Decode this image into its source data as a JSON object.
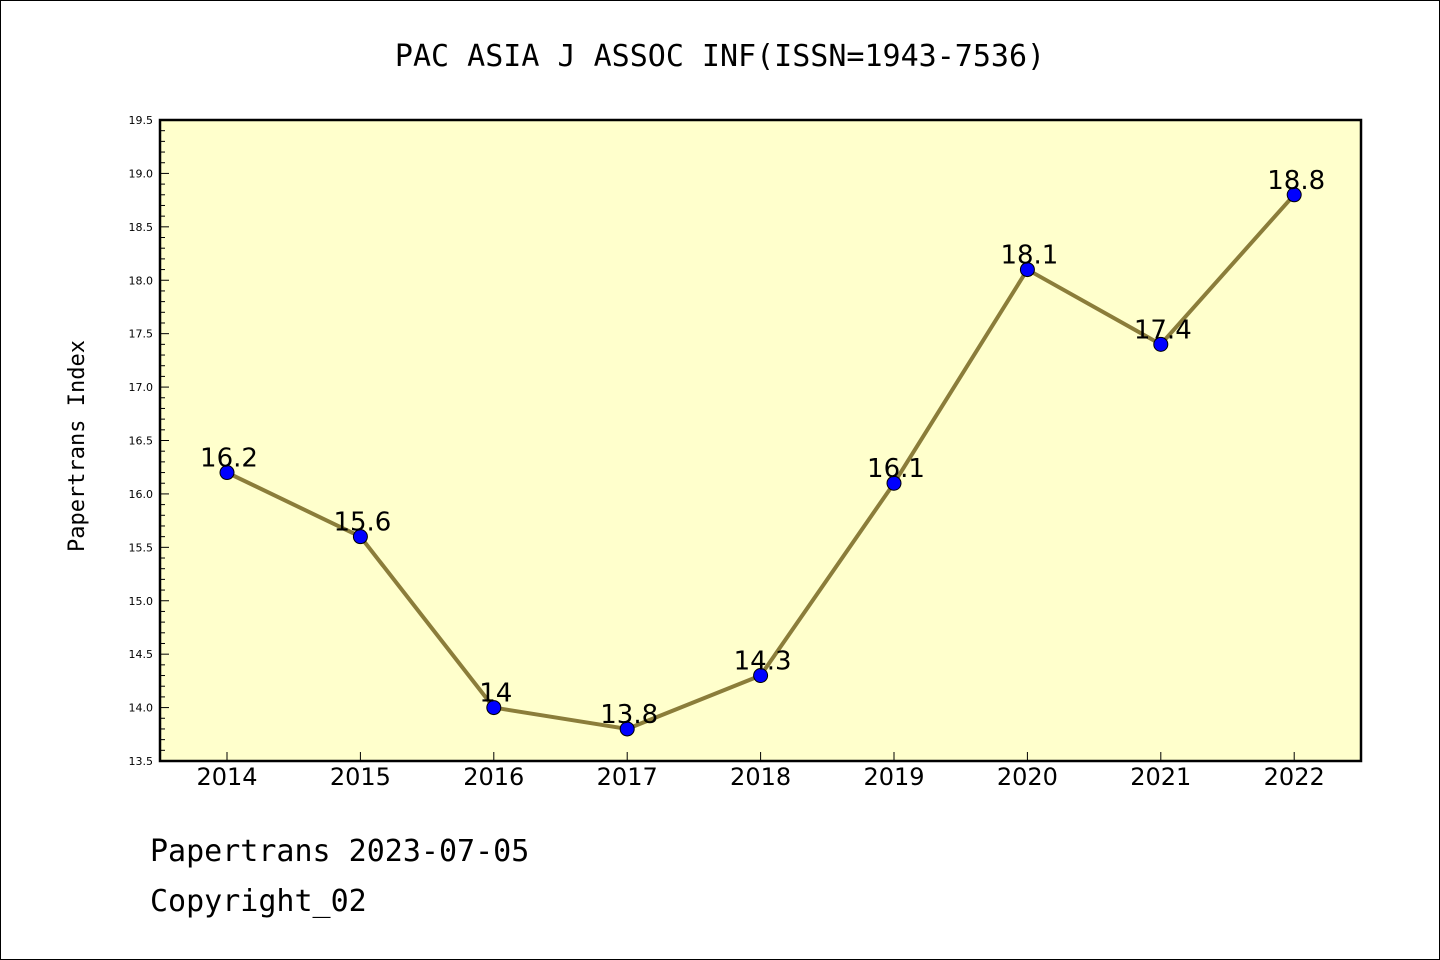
{
  "chart_data": {
    "type": "line",
    "title": "PAC ASIA J ASSOC INF(ISSN=1943-7536)",
    "ylabel": "Papertrans Index",
    "xlabel": "",
    "categories": [
      "2014",
      "2015",
      "2016",
      "2017",
      "2018",
      "2019",
      "2020",
      "2021",
      "2022"
    ],
    "values": [
      16.2,
      15.6,
      14,
      13.8,
      14.3,
      16.1,
      18.1,
      17.4,
      18.8
    ],
    "data_labels": [
      "16.2",
      "15.6",
      "14",
      "13.8",
      "14.3",
      "16.1",
      "18.1",
      "17.4",
      "18.8"
    ],
    "ylim": [
      13.5,
      19.5
    ],
    "yticks": [
      "13.5",
      "14.0",
      "14.5",
      "15.0",
      "15.5",
      "16.0",
      "16.5",
      "17.0",
      "17.5",
      "18.0",
      "18.5",
      "19.0",
      "19.5"
    ],
    "grid": false,
    "legend": "none",
    "colors": {
      "plot_background": "#ffffcc",
      "line": "#8b7d3a",
      "marker": "#0000ff"
    }
  },
  "footer": {
    "line1": "Papertrans 2023-07-05",
    "line2": "Copyright_02"
  }
}
